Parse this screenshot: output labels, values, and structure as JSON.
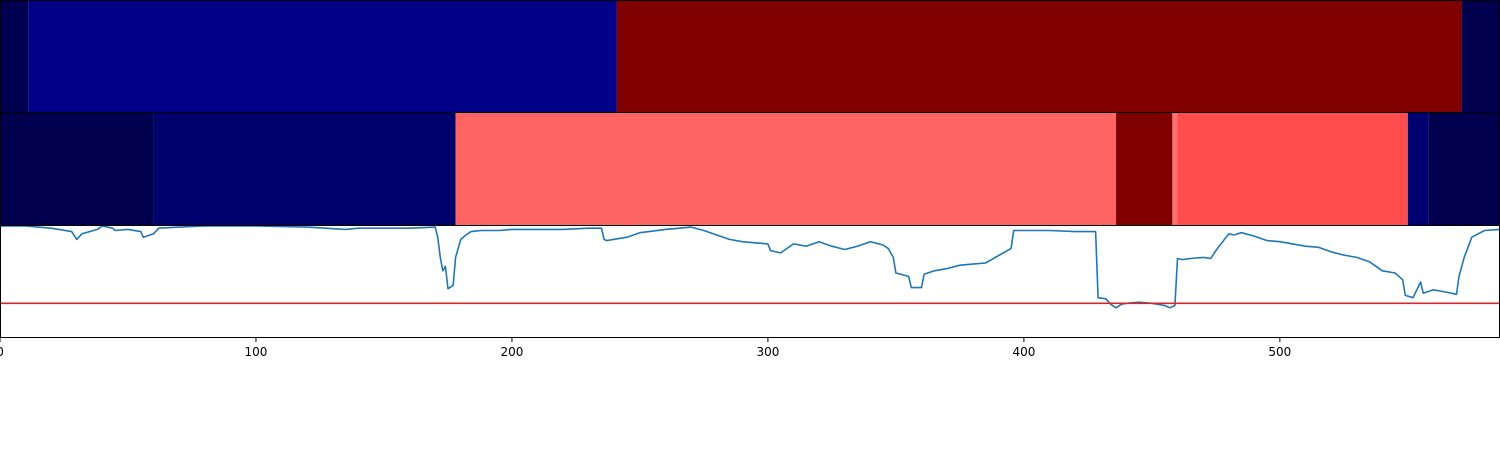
{
  "chart_data": [
    {
      "type": "heatmap",
      "panel": "top-band",
      "xlim": [
        0,
        586
      ],
      "segments": [
        {
          "start": 0,
          "end": 11,
          "color": "#000051"
        },
        {
          "start": 11,
          "end": 241,
          "color": "#000089"
        },
        {
          "start": 241,
          "end": 571,
          "color": "#800000"
        },
        {
          "start": 571,
          "end": 586,
          "color": "#00004f"
        }
      ]
    },
    {
      "type": "heatmap",
      "panel": "middle-band",
      "xlim": [
        0,
        586
      ],
      "segments": [
        {
          "start": 0,
          "end": 60,
          "color": "#00004f"
        },
        {
          "start": 60,
          "end": 178,
          "color": "#00006d"
        },
        {
          "start": 178,
          "end": 436,
          "color": "#ff6464"
        },
        {
          "start": 436,
          "end": 458,
          "color": "#800000"
        },
        {
          "start": 458,
          "end": 460,
          "color": "#ff7070"
        },
        {
          "start": 460,
          "end": 550,
          "color": "#ff4c4c"
        },
        {
          "start": 550,
          "end": 558,
          "color": "#000070"
        },
        {
          "start": 558,
          "end": 586,
          "color": "#00004f"
        }
      ]
    },
    {
      "type": "line",
      "panel": "bottom-line",
      "xlim": [
        0,
        586
      ],
      "ylim": [
        0,
        1
      ],
      "grid": false,
      "xticks": [
        0,
        100,
        200,
        300,
        400,
        500
      ],
      "threshold": {
        "y": 0.31,
        "color": "#d62728"
      },
      "series": [
        {
          "color": "#1f77b4",
          "x": [
            0,
            10,
            20,
            28,
            30,
            32,
            35,
            38,
            40,
            44,
            45,
            50,
            55,
            56,
            60,
            62,
            70,
            80,
            100,
            120,
            135,
            140,
            150,
            160,
            170,
            171,
            172,
            173,
            174,
            175,
            177,
            178,
            180,
            182,
            184,
            188,
            195,
            200,
            210,
            220,
            230,
            235,
            236,
            237,
            245,
            250,
            260,
            270,
            275,
            280,
            285,
            290,
            295,
            300,
            301,
            305,
            310,
            315,
            320,
            325,
            330,
            335,
            340,
            345,
            347,
            349,
            350,
            355,
            356,
            360,
            361,
            365,
            370,
            375,
            380,
            385,
            395,
            396,
            400,
            410,
            420,
            425,
            428,
            429,
            432,
            434,
            436,
            438,
            440,
            445,
            450,
            455,
            457,
            459,
            460,
            462,
            465,
            470,
            473,
            475,
            480,
            482,
            485,
            490,
            495,
            500,
            505,
            510,
            515,
            520,
            525,
            530,
            535,
            540,
            545,
            548,
            549,
            552,
            555,
            556,
            560,
            565,
            569,
            570,
            572,
            575,
            580,
            586
          ],
          "y": [
            1.0,
            1.0,
            0.98,
            0.95,
            0.88,
            0.93,
            0.95,
            0.97,
            1.0,
            0.98,
            0.96,
            0.97,
            0.95,
            0.9,
            0.93,
            0.98,
            0.99,
            1.0,
            1.0,
            0.99,
            0.97,
            0.98,
            0.98,
            0.98,
            0.99,
            0.9,
            0.72,
            0.6,
            0.64,
            0.44,
            0.47,
            0.72,
            0.88,
            0.92,
            0.95,
            0.96,
            0.96,
            0.97,
            0.97,
            0.97,
            0.98,
            0.98,
            0.88,
            0.87,
            0.9,
            0.94,
            0.97,
            0.99,
            0.96,
            0.92,
            0.88,
            0.86,
            0.85,
            0.84,
            0.78,
            0.76,
            0.84,
            0.82,
            0.86,
            0.82,
            0.79,
            0.82,
            0.86,
            0.83,
            0.8,
            0.72,
            0.58,
            0.55,
            0.45,
            0.45,
            0.57,
            0.6,
            0.62,
            0.65,
            0.66,
            0.67,
            0.8,
            0.96,
            0.96,
            0.96,
            0.95,
            0.95,
            0.95,
            0.36,
            0.35,
            0.3,
            0.27,
            0.3,
            0.31,
            0.32,
            0.31,
            0.29,
            0.27,
            0.29,
            0.71,
            0.7,
            0.71,
            0.72,
            0.71,
            0.78,
            0.93,
            0.92,
            0.94,
            0.91,
            0.87,
            0.86,
            0.84,
            0.82,
            0.81,
            0.77,
            0.74,
            0.72,
            0.68,
            0.6,
            0.58,
            0.52,
            0.38,
            0.36,
            0.5,
            0.4,
            0.43,
            0.41,
            0.39,
            0.55,
            0.72,
            0.9,
            0.96,
            0.97
          ]
        }
      ]
    }
  ]
}
